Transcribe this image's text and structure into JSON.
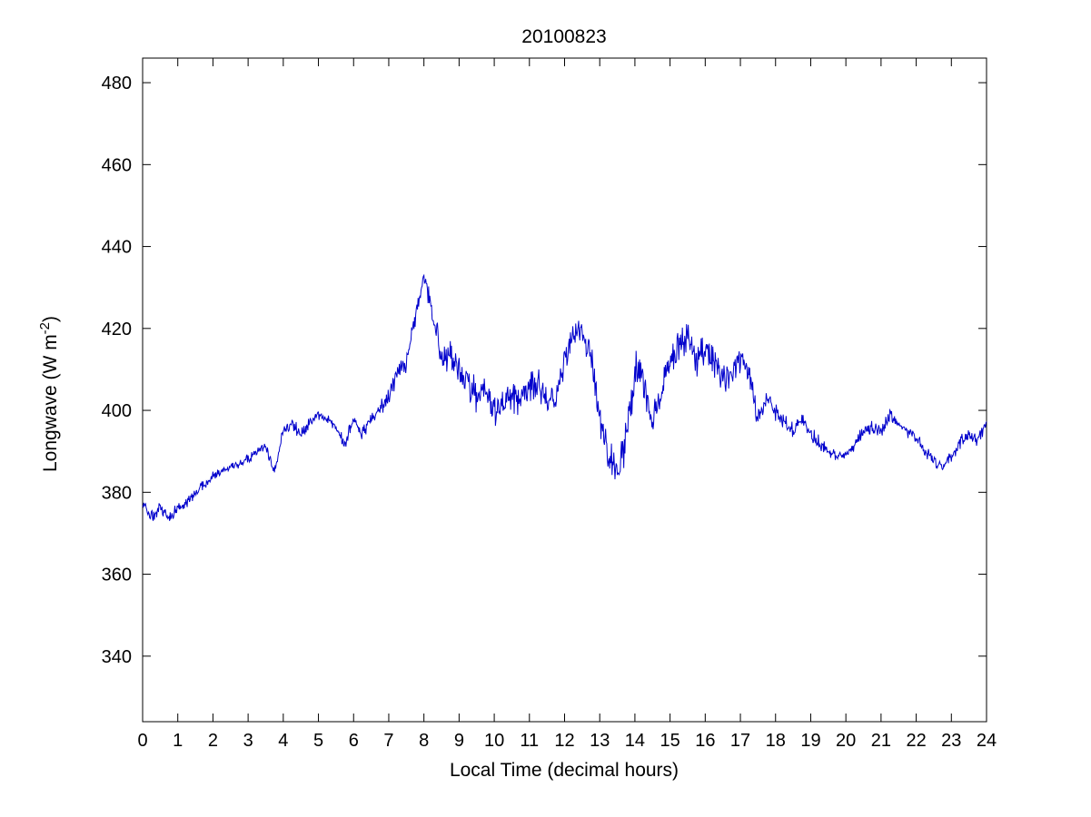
{
  "figure": {
    "background": "#ffffff",
    "frame_color": "#000000"
  },
  "chart_data": {
    "type": "line",
    "title": "20100823",
    "xlabel": "Local Time (decimal hours)",
    "ylabel_parts": {
      "prefix": "Longwave (W m",
      "sup": "-2",
      "suffix": ")"
    },
    "line_color": "#0000CC",
    "grid": false,
    "legend": null,
    "xlim": [
      0,
      24
    ],
    "ylim": [
      324,
      486
    ],
    "x_ticks": [
      0,
      1,
      2,
      3,
      4,
      5,
      6,
      7,
      8,
      9,
      10,
      11,
      12,
      13,
      14,
      15,
      16,
      17,
      18,
      19,
      20,
      21,
      22,
      23,
      24
    ],
    "y_ticks": [
      340,
      360,
      380,
      400,
      420,
      440,
      460,
      480
    ],
    "series": [
      {
        "name": "longwave",
        "x": [
          0,
          0.25,
          0.5,
          0.75,
          1,
          1.25,
          1.5,
          1.75,
          2,
          2.25,
          2.5,
          2.75,
          3,
          3.25,
          3.5,
          3.75,
          4,
          4.25,
          4.5,
          4.75,
          5,
          5.25,
          5.5,
          5.75,
          6,
          6.25,
          6.5,
          6.75,
          7,
          7.25,
          7.5,
          7.75,
          8,
          8.25,
          8.5,
          8.75,
          9,
          9.25,
          9.5,
          9.75,
          10,
          10.25,
          10.5,
          10.75,
          11,
          11.25,
          11.5,
          11.75,
          12,
          12.25,
          12.5,
          12.75,
          13,
          13.25,
          13.5,
          13.75,
          14,
          14.25,
          14.5,
          14.75,
          15,
          15.25,
          15.5,
          15.75,
          16,
          16.25,
          16.5,
          16.75,
          17,
          17.25,
          17.5,
          17.75,
          18,
          18.25,
          18.5,
          18.75,
          19,
          19.25,
          19.5,
          19.75,
          20,
          20.25,
          20.5,
          20.75,
          21,
          21.25,
          21.5,
          21.75,
          22,
          22.25,
          22.5,
          22.75,
          23,
          23.25,
          23.5,
          23.75,
          24
        ],
        "y": [
          377,
          374,
          376,
          374,
          376,
          377,
          380,
          382,
          384,
          385,
          386,
          387,
          388,
          390,
          391,
          385,
          395,
          397,
          394,
          397,
          399,
          398,
          396,
          392,
          398,
          394,
          398,
          400,
          404,
          409,
          412,
          422,
          433,
          424,
          412,
          414,
          409,
          407,
          403,
          406,
          400,
          402,
          404,
          403,
          406,
          407,
          402,
          404,
          412,
          418,
          419,
          414,
          398,
          390,
          385,
          393,
          410,
          407,
          398,
          404,
          412,
          416,
          419,
          412,
          416,
          412,
          407,
          410,
          412,
          408,
          398,
          403,
          399,
          397,
          395,
          398,
          394,
          392,
          390,
          389,
          389,
          391,
          395,
          396,
          395,
          399,
          397,
          395,
          393,
          390,
          388,
          386,
          389,
          392,
          394,
          393,
          397
        ],
        "noise_amp": [
          2,
          2,
          2,
          2,
          1.5,
          1.5,
          1.5,
          1.5,
          1.5,
          1,
          1,
          1.5,
          1.5,
          1.5,
          1.5,
          2,
          1.5,
          1.5,
          2,
          1.5,
          1.5,
          1.5,
          2,
          2,
          1.5,
          2,
          1.5,
          2,
          3,
          3,
          4,
          3,
          2,
          4,
          4,
          4,
          4,
          4,
          5,
          5,
          4,
          5,
          5,
          5,
          5,
          5,
          4,
          4,
          4,
          4,
          4,
          5,
          4,
          5,
          5,
          5,
          6,
          5,
          4,
          4,
          5,
          5,
          5,
          5,
          5,
          5,
          4,
          4,
          4,
          4,
          3,
          3,
          3,
          2.5,
          2.5,
          2.5,
          2.5,
          2,
          2,
          1.5,
          1.5,
          2,
          2,
          2,
          2,
          2,
          2,
          2,
          2,
          2,
          1.5,
          1.5,
          2,
          2,
          2,
          2,
          2
        ]
      }
    ]
  }
}
